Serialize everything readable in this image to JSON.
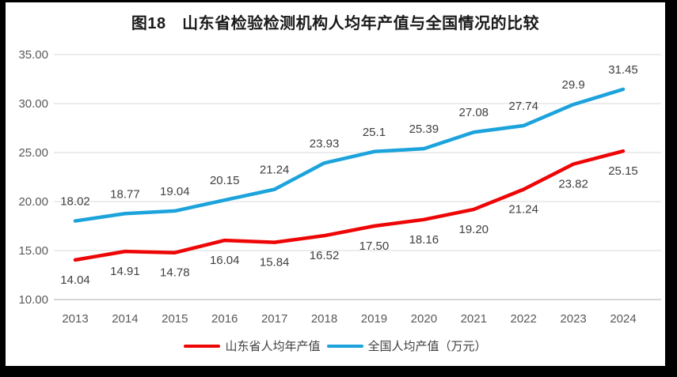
{
  "title": "图18　山东省检验检测机构人均年产值与全国情况的比较",
  "chart_data": {
    "type": "line",
    "x": [
      "2013",
      "2014",
      "2015",
      "2016",
      "2017",
      "2018",
      "2019",
      "2020",
      "2021",
      "2022",
      "2023",
      "2024"
    ],
    "series": [
      {
        "name": "山东省人均年产值",
        "color": "#EE0505",
        "values": [
          14.04,
          14.91,
          14.78,
          16.04,
          15.84,
          16.52,
          17.5,
          18.16,
          19.2,
          21.24,
          23.82,
          25.15
        ],
        "labels": [
          "14.04",
          "14.91",
          "14.78",
          "16.04",
          "15.84",
          "16.52",
          "17.50",
          "18.16",
          "19.20",
          "21.24",
          "23.82",
          "25.15"
        ],
        "label_position": "below"
      },
      {
        "name": "全国人均产值（万元）",
        "color": "#1CA3DC",
        "values": [
          18.02,
          18.77,
          19.04,
          20.15,
          21.24,
          23.93,
          25.1,
          25.39,
          27.08,
          27.74,
          29.9,
          31.45
        ],
        "labels": [
          "18.02",
          "18.77",
          "19.04",
          "20.15",
          "21.24",
          "23.93",
          "25.1",
          "25.39",
          "27.08",
          "27.74",
          "29.9",
          "31.45"
        ],
        "label_position": "above"
      }
    ],
    "ylim": [
      10,
      35
    ],
    "yticks": [
      "35.00",
      "30.00",
      "25.00",
      "20.00",
      "15.00",
      "10.00"
    ],
    "grid": true,
    "legend_position": "bottom",
    "grid_color": "#D9D9D9",
    "axis_color": "#BFBFBF",
    "tick_color": "#595959",
    "label_color": "#404040"
  }
}
